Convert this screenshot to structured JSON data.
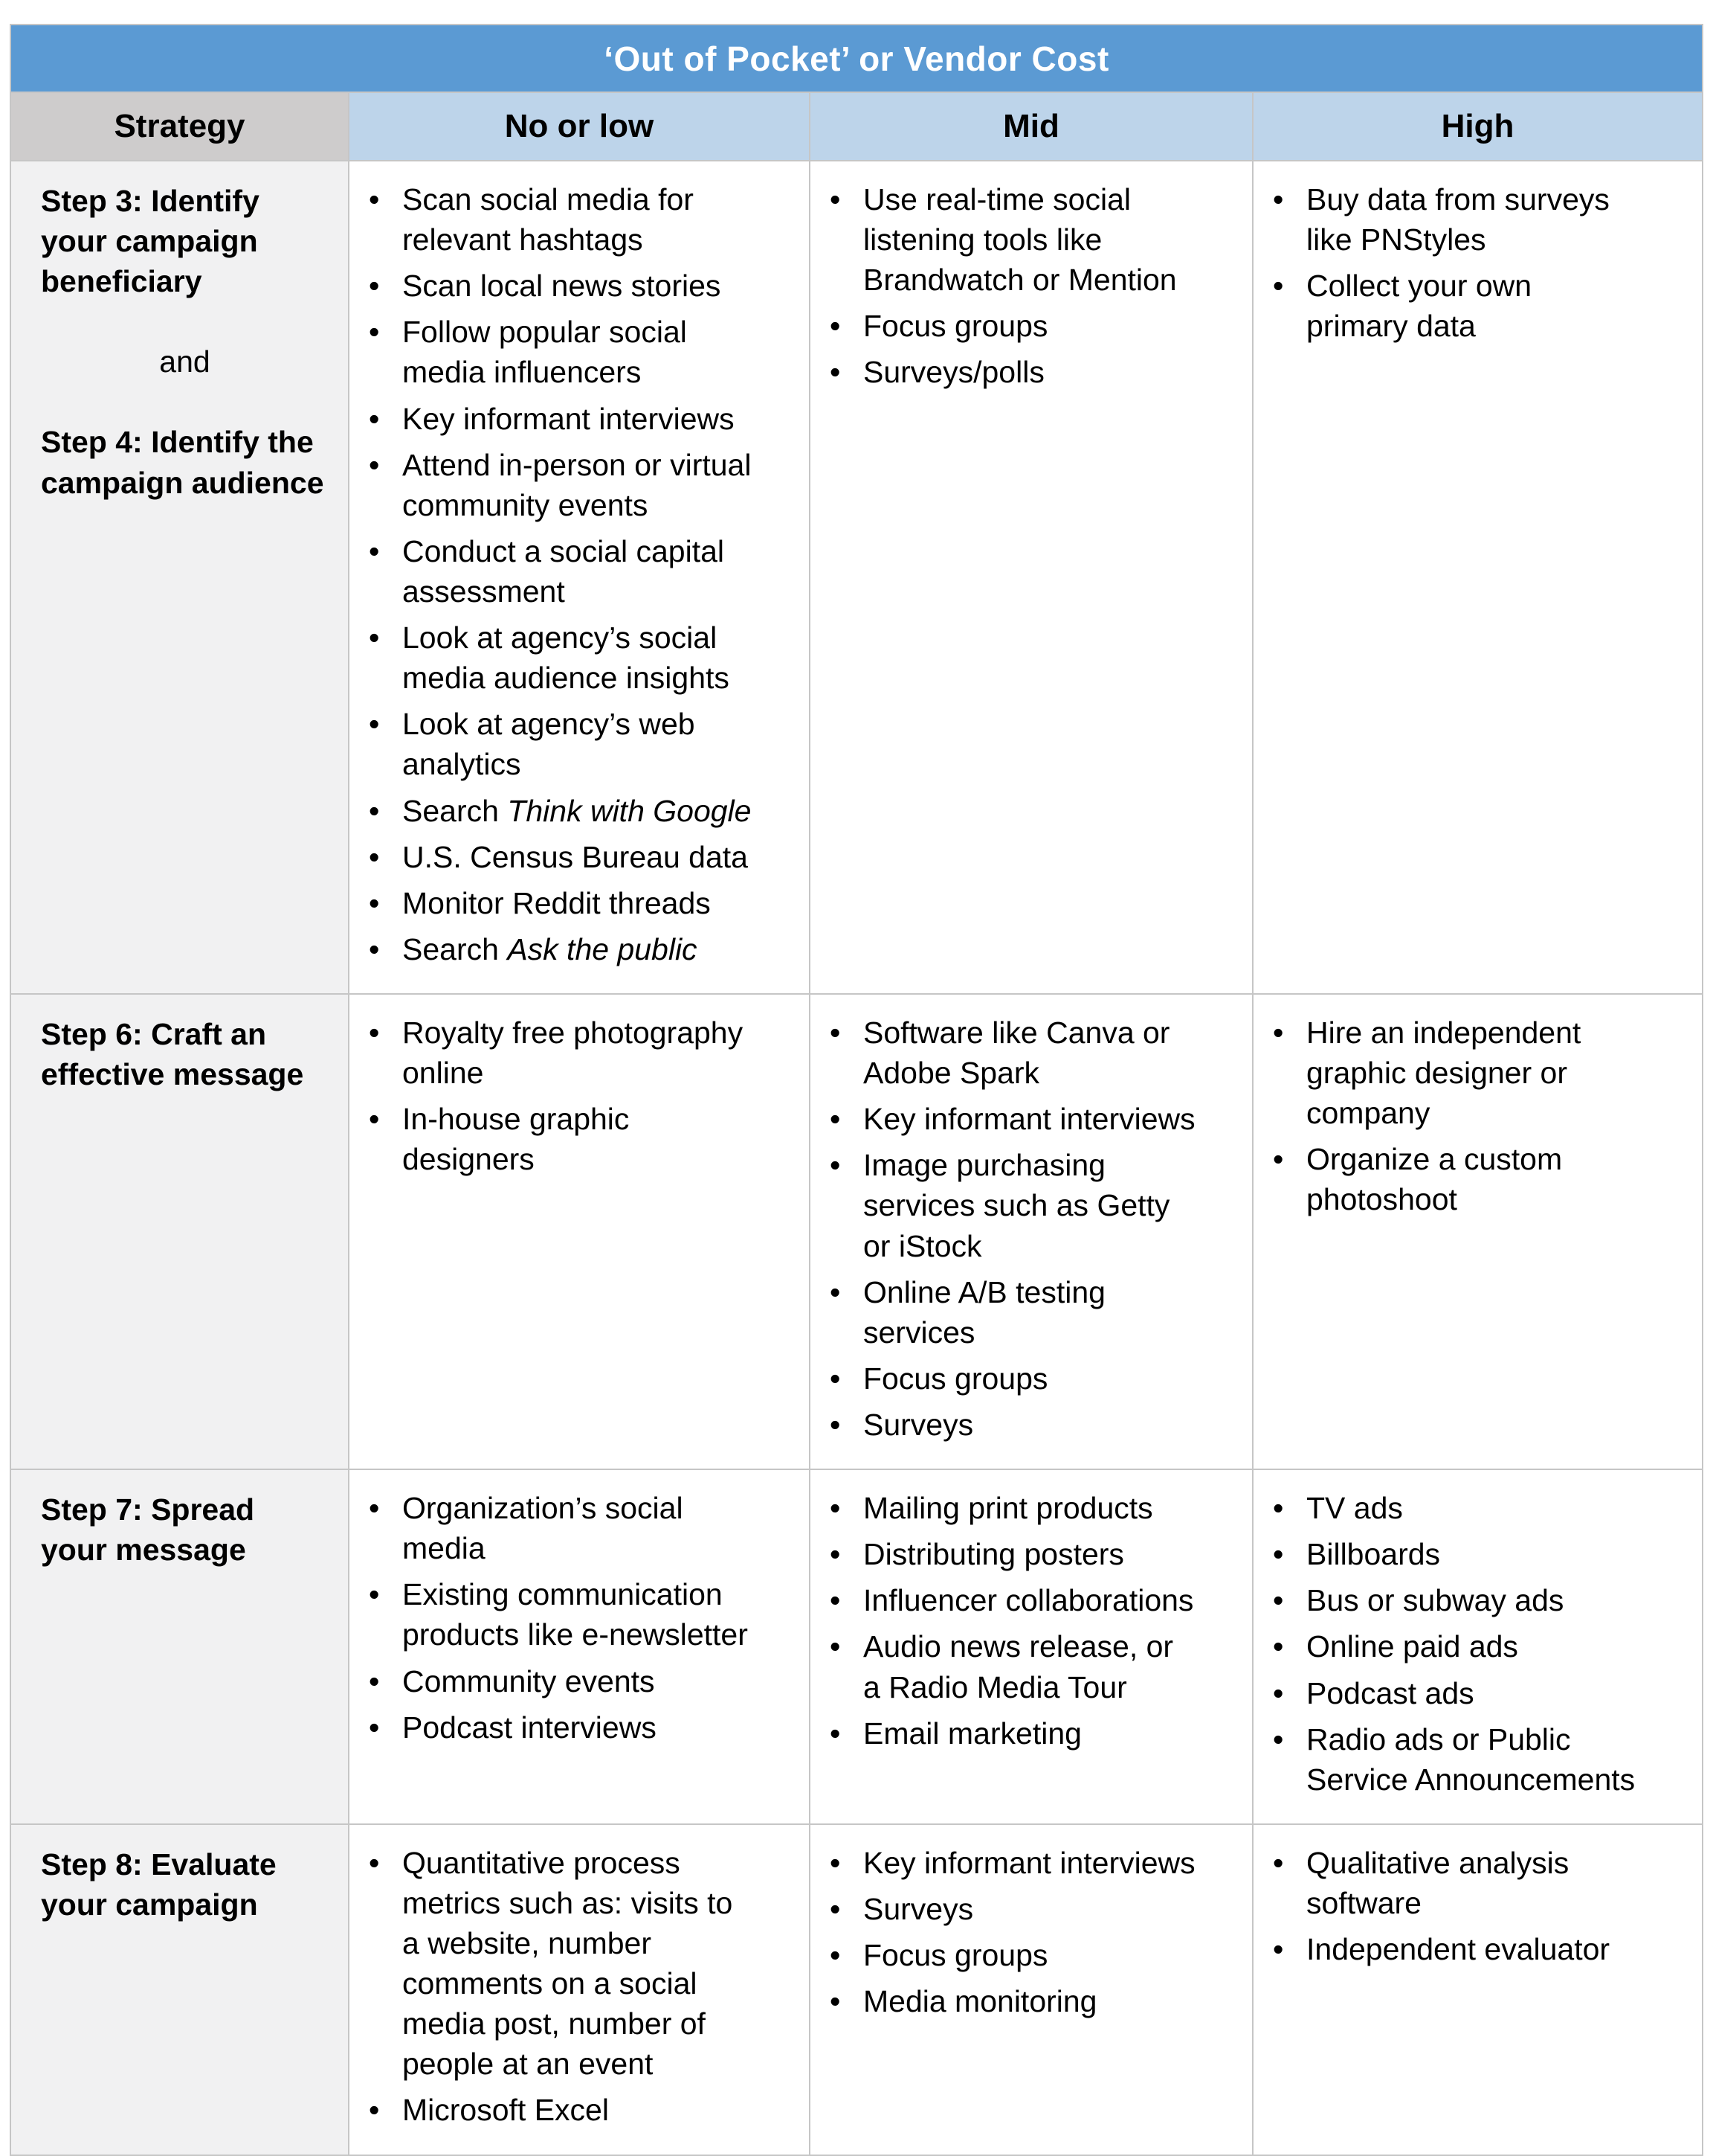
{
  "title": "‘Out of Pocket’ or Vendor Cost",
  "columns": {
    "strategy": "Strategy",
    "no_or_low": "No or low",
    "mid": "Mid",
    "high": "High"
  },
  "colors": {
    "title_bar": "#5b9ad3",
    "title_text": "#ffffff",
    "strategy_header_bg": "#cecccc",
    "cost_header_bg": "#bdd4ea",
    "strategy_cell_bg": "#f1f1f2",
    "body_bg": "#ffffff",
    "border": "#c6c6c6"
  },
  "rows": [
    {
      "strategy": [
        {
          "text": "Step 3: Identify your campaign beneficiary",
          "bold": true
        },
        {
          "text": "and",
          "center": true
        },
        {
          "text": "Step 4: Identify the campaign audience",
          "bold": true
        }
      ],
      "no_or_low": [
        "Scan social media for relevant hashtags",
        "Scan local news stories",
        "Follow popular social media influencers",
        "Key informant interviews",
        "Attend in-person or virtual community events",
        "Conduct a social capital assessment",
        "Look at agency’s social media audience insights",
        "Look at agency’s web analytics",
        {
          "pre": "Search ",
          "italic": "Think with Google"
        },
        "U.S. Census Bureau data",
        "Monitor Reddit threads",
        {
          "pre": "Search ",
          "italic": "Ask the public"
        }
      ],
      "mid": [
        "Use real-time social listening tools like Brandwatch or Mention",
        "Focus groups",
        "Surveys/polls"
      ],
      "high": [
        "Buy data from surveys like PNStyles",
        "Collect your own primary data"
      ]
    },
    {
      "strategy": [
        {
          "text": "Step 6: Craft an effective message",
          "bold": true
        }
      ],
      "no_or_low": [
        "Royalty free photography online",
        "In-house graphic designers"
      ],
      "mid": [
        "Software like Canva or Adobe Spark",
        "Key informant interviews",
        "Image purchasing services such as Getty or iStock",
        "Online A/B testing services",
        "Focus groups",
        "Surveys"
      ],
      "high": [
        "Hire an independent graphic designer or company",
        "Organize a custom photoshoot"
      ]
    },
    {
      "strategy": [
        {
          "text": "Step 7: Spread your message",
          "bold": true
        }
      ],
      "no_or_low": [
        "Organization’s social media",
        "Existing communication products like e-newsletter",
        "Community events",
        "Podcast interviews"
      ],
      "mid": [
        "Mailing print products",
        "Distributing posters",
        "Influencer collaborations",
        "Audio news release, or a Radio Media Tour",
        "Email marketing"
      ],
      "high": [
        "TV ads",
        "Billboards",
        "Bus or subway ads",
        "Online paid ads",
        "Podcast ads",
        "Radio ads or Public Service Announcements"
      ]
    },
    {
      "strategy": [
        {
          "text": "Step 8: Evaluate your campaign",
          "bold": true
        }
      ],
      "no_or_low": [
        "Quantitative process metrics such as: visits to a website, number comments on a social media post, number of people at an event",
        "Microsoft Excel"
      ],
      "mid": [
        "Key informant interviews",
        "Surveys",
        "Focus groups",
        "Media monitoring"
      ],
      "high": [
        "Qualitative analysis software",
        "Independent evaluator"
      ]
    }
  ]
}
